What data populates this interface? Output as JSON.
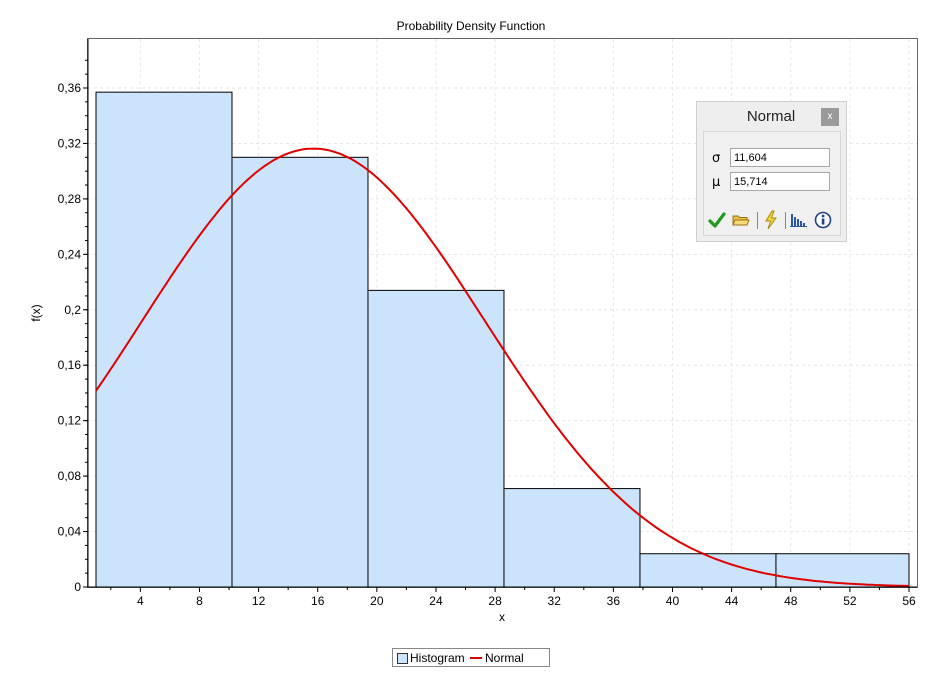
{
  "chart_data": {
    "type": "bar",
    "title": "Probability Density Function",
    "xlabel": "x",
    "ylabel": "f(x)",
    "xlim": [
      1,
      56
    ],
    "ylim": [
      0,
      0.39
    ],
    "grid": true,
    "legend_position": "bottom-center",
    "x_ticks": [
      4,
      8,
      12,
      16,
      20,
      24,
      28,
      32,
      36,
      40,
      44,
      48,
      52,
      56
    ],
    "y_ticks": [
      0,
      0.04,
      0.08,
      0.12,
      0.16,
      0.2,
      0.24,
      0.28,
      0.32,
      0.36
    ],
    "y_tick_labels": [
      "0",
      "0,04",
      "0,08",
      "0,12",
      "0,16",
      "0,2",
      "0,24",
      "0,28",
      "0,32",
      "0,36"
    ],
    "series": [
      {
        "name": "Histogram",
        "kind": "histogram",
        "color": "#cce4fb",
        "bins": [
          {
            "x0": 1.0,
            "x1": 10.2,
            "y": 0.357
          },
          {
            "x0": 10.2,
            "x1": 19.4,
            "y": 0.31
          },
          {
            "x0": 19.4,
            "x1": 28.6,
            "y": 0.214
          },
          {
            "x0": 28.6,
            "x1": 37.8,
            "y": 0.071
          },
          {
            "x0": 37.8,
            "x1": 47.0,
            "y": 0.024
          },
          {
            "x0": 47.0,
            "x1": 56.2,
            "y": 0.024
          }
        ]
      },
      {
        "name": "Normal",
        "kind": "line",
        "color": "#e00000",
        "distribution": "normal",
        "sigma": 11.604,
        "mu": 15.714
      }
    ]
  },
  "panel": {
    "title": "Normal",
    "close_label": "x",
    "sigma_symbol": "σ",
    "mu_symbol": "μ",
    "sigma_value": "11,604",
    "mu_value": "15,714",
    "toolbar_icons": [
      "check-icon",
      "folder-open-icon",
      "lightning-icon",
      "histogram-icon",
      "info-icon"
    ]
  },
  "legend": {
    "items": [
      "Histogram",
      "Normal"
    ]
  }
}
